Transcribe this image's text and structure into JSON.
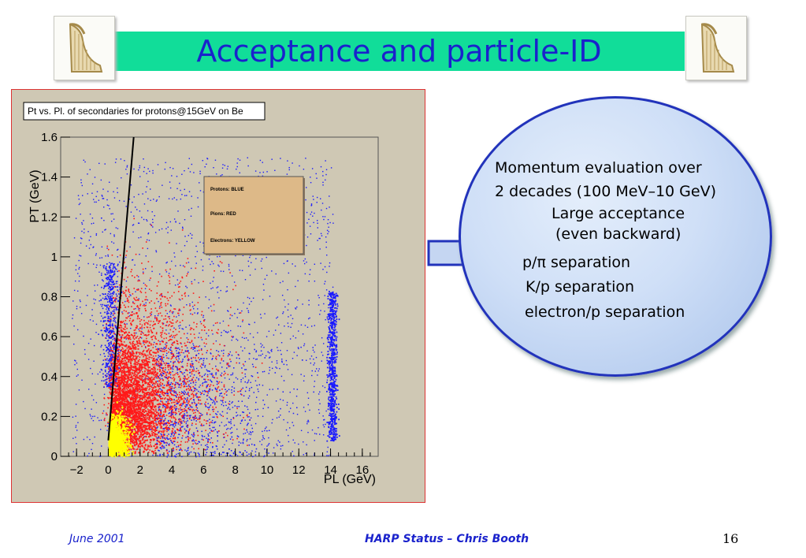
{
  "slide": {
    "title": "Acceptance and particle-ID",
    "footer_date": "June 2001",
    "footer_center": "HARP Status – Chris Booth",
    "page_number": "16"
  },
  "bubble": {
    "lines": [
      "Momentum evaluation over",
      "2 decades (100 MeV–10 GeV)",
      "Large acceptance",
      "(even backward)",
      "p/π separation",
      "K/p separation",
      "electron/p separation"
    ]
  },
  "chart_data": {
    "type": "scatter",
    "title": "Pt vs. Pl. of secondaries for protons@15GeV on Be",
    "xlabel": "PL (GeV)",
    "ylabel": "PT (GeV)",
    "xlim": [
      -3,
      17
    ],
    "ylim": [
      0,
      1.6
    ],
    "x_ticks": [
      "−2",
      "0",
      "2",
      "4",
      "6",
      "8",
      "10",
      "12",
      "14",
      "16"
    ],
    "y_ticks": [
      "0",
      "0.2",
      "0.4",
      "0.6",
      "0.8",
      "1",
      "1.2",
      "1.4",
      "1.6"
    ],
    "legend": {
      "placement": "top-center",
      "entries": [
        {
          "label": "Protons: BLUE",
          "color": "#1a1aff"
        },
        {
          "label": "Pions: RED",
          "color": "#ff1a1a"
        },
        {
          "label": "Electrons: YELLOW",
          "color": "#ffff00"
        }
      ]
    },
    "series": [
      {
        "name": "Protons: BLUE",
        "color": "#1a1aff"
      },
      {
        "name": "Pions: RED",
        "color": "#ff1a1a"
      },
      {
        "name": "Electrons: YELLOW",
        "color": "#ffff00"
      }
    ],
    "cut_line": {
      "x": [
        0.0,
        1.6
      ],
      "y": [
        0.08,
        1.6
      ]
    },
    "grid": false
  },
  "colors": {
    "title_bar": "#11dd99",
    "title_text": "#1a22cc",
    "plot_background": "#cfc8b4",
    "legend_fill": "#ddb988",
    "bubble_border": "#2233bb",
    "arrow_fill": "#c5d6f2"
  },
  "icons": {
    "logo": "harp-icon"
  }
}
